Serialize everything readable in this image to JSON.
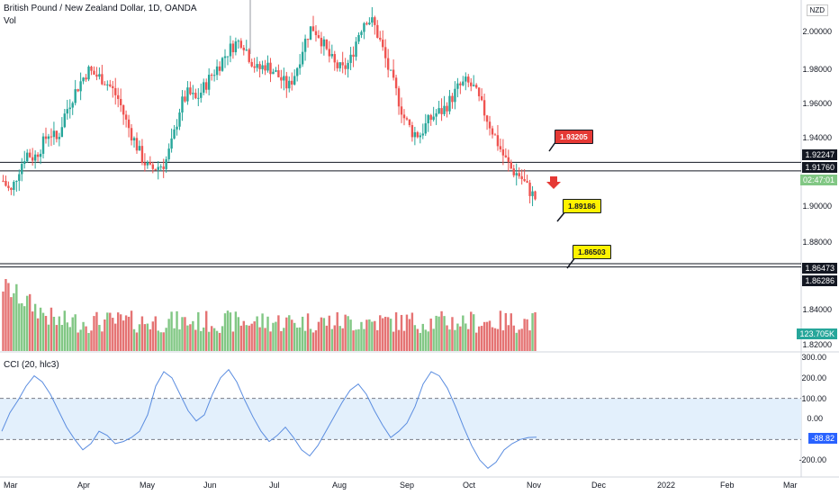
{
  "header": {
    "symbol_title": "British Pound / New Zealand Dollar, 1D, OANDA",
    "volume_label": "Vol",
    "currency": "NZD"
  },
  "price_axis": {
    "ticks": [
      "2.00000",
      "1.98000",
      "1.96000",
      "1.94000",
      "1.90000",
      "1.88000",
      "1.84000",
      "1.82000"
    ],
    "badges": {
      "level_top": "1.92247",
      "level_mid": "1.91760",
      "countdown": "02:47:01",
      "level_low1": "1.86473",
      "level_low2": "1.86286",
      "volume": "123.705K"
    }
  },
  "annotations": {
    "callout_red": "1.93205",
    "callout_yellow_1": "1.89186",
    "callout_yellow_2": "1.86503"
  },
  "cci": {
    "label": "CCI (20, hlc3)",
    "ticks": [
      "300.00",
      "200.00",
      "100.00",
      "0.00",
      "-200.00"
    ],
    "current": "-88.82"
  },
  "time_axis": [
    "Mar",
    "Apr",
    "May",
    "Jun",
    "Jul",
    "Aug",
    "Sep",
    "Oct",
    "Nov",
    "Dec",
    "2022",
    "Feb",
    "Mar"
  ],
  "colors": {
    "up": "#26a69a",
    "down": "#ef5350",
    "vol_up": "#81c784",
    "vol_down": "#e57373",
    "cci_line": "#5b8de0",
    "cci_band": "#e3f0fc",
    "callout_red": "#e53935",
    "callout_yellow": "#fff200"
  },
  "chart_data": {
    "type": "candlestick",
    "ylim": [
      1.815,
      2.015
    ],
    "horizontal_levels": [
      1.92247,
      1.9176,
      1.86473,
      1.86286
    ],
    "close_path": [
      [
        1.912,
        0
      ],
      [
        1.905,
        3
      ],
      [
        1.918,
        6
      ],
      [
        1.928,
        9
      ],
      [
        1.925,
        12
      ],
      [
        1.932,
        15
      ],
      [
        1.94,
        18
      ],
      [
        1.935,
        21
      ],
      [
        1.95,
        24
      ],
      [
        1.96,
        27
      ],
      [
        1.968,
        30
      ],
      [
        1.975,
        33
      ],
      [
        1.972,
        36
      ],
      [
        1.97,
        39
      ],
      [
        1.965,
        42
      ],
      [
        1.958,
        45
      ],
      [
        1.945,
        48
      ],
      [
        1.935,
        51
      ],
      [
        1.925,
        54
      ],
      [
        1.918,
        57
      ],
      [
        1.92,
        60
      ],
      [
        1.922,
        63
      ],
      [
        1.935,
        66
      ],
      [
        1.955,
        69
      ],
      [
        1.962,
        72
      ],
      [
        1.958,
        75
      ],
      [
        1.965,
        78
      ],
      [
        1.972,
        81
      ],
      [
        1.978,
        84
      ],
      [
        1.985,
        87
      ],
      [
        1.99,
        90
      ],
      [
        1.992,
        93
      ],
      [
        1.982,
        96
      ],
      [
        1.975,
        99
      ],
      [
        1.978,
        102
      ],
      [
        1.975,
        105
      ],
      [
        1.97,
        108
      ],
      [
        1.965,
        111
      ],
      [
        1.975,
        114
      ],
      [
        1.99,
        117
      ],
      [
        2.0,
        120
      ],
      [
        1.995,
        123
      ],
      [
        1.985,
        126
      ],
      [
        1.978,
        129
      ],
      [
        1.975,
        132
      ],
      [
        1.98,
        135
      ],
      [
        1.995,
        138
      ],
      [
        2.005,
        141
      ],
      [
        2.002,
        144
      ],
      [
        1.99,
        147
      ],
      [
        1.975,
        150
      ],
      [
        1.962,
        153
      ],
      [
        1.948,
        156
      ],
      [
        1.94,
        159
      ],
      [
        1.938,
        162
      ],
      [
        1.945,
        165
      ],
      [
        1.95,
        168
      ],
      [
        1.952,
        171
      ],
      [
        1.958,
        174
      ],
      [
        1.965,
        177
      ],
      [
        1.968,
        180
      ],
      [
        1.965,
        183
      ],
      [
        1.955,
        186
      ],
      [
        1.945,
        189
      ],
      [
        1.935,
        192
      ],
      [
        1.925,
        195
      ],
      [
        1.918,
        198
      ],
      [
        1.915,
        201
      ],
      [
        1.908,
        204
      ],
      [
        1.902,
        207
      ]
    ],
    "volume_range": [
      0,
      1
    ],
    "cci_range": [
      -300,
      300
    ],
    "cci_series": [
      -60,
      30,
      90,
      160,
      210,
      180,
      120,
      40,
      -40,
      -100,
      -150,
      -120,
      -60,
      -80,
      -120,
      -110,
      -90,
      -60,
      20,
      160,
      230,
      200,
      120,
      40,
      -10,
      20,
      120,
      200,
      240,
      180,
      90,
      10,
      -60,
      -110,
      -80,
      -40,
      -90,
      -150,
      -180,
      -130,
      -60,
      10,
      80,
      140,
      170,
      120,
      40,
      -30,
      -90,
      -60,
      -20,
      60,
      170,
      230,
      210,
      150,
      60,
      -40,
      -130,
      -200,
      -240,
      -210,
      -150,
      -120,
      -100,
      -90,
      -88.82
    ]
  }
}
